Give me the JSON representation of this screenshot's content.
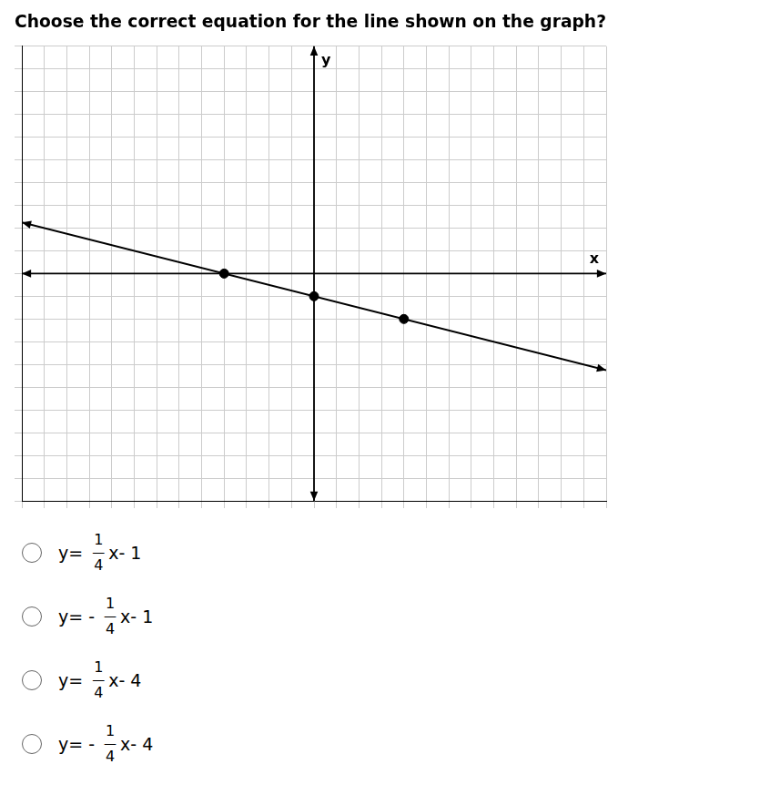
{
  "chart_data": {
    "type": "scatter",
    "title": "Choose the correct equation for the line shown on the graph?",
    "x_label": "x",
    "y_label": "y",
    "xlim": [
      -13,
      13
    ],
    "xticks": [
      -13,
      -12,
      -11,
      -10,
      -9,
      -8,
      -7,
      -6,
      -5,
      -4,
      -3,
      -2,
      -1,
      0,
      1,
      2,
      3,
      4,
      5,
      6,
      7,
      8,
      9,
      10,
      11,
      12,
      13
    ],
    "ylim": [
      -10,
      10
    ],
    "yticks": [
      -10,
      -9,
      -8,
      -7,
      -6,
      -5,
      -4,
      -3,
      -2,
      -1,
      0,
      1,
      2,
      3,
      4,
      5,
      6,
      7,
      8,
      9,
      10
    ],
    "grid": true,
    "tick_labels": false,
    "series": [
      {
        "type": "line",
        "color": "#000000",
        "x": [
          -13,
          13
        ],
        "values": [
          2.25,
          -4.25
        ]
      },
      {
        "type": "scatter",
        "color": "#000000",
        "x": [
          -4,
          0,
          4
        ],
        "values": [
          0,
          -1,
          -2
        ]
      }
    ],
    "annotations": [
      {
        "prefix": "y= ",
        "numerator": "1",
        "bar": "—",
        "denominator": "4",
        "suffix": "x- 1"
      },
      {
        "prefix": "y= - ",
        "numerator": "1",
        "bar": "—",
        "denominator": "4",
        "suffix": "x- 1"
      },
      {
        "prefix": "y= ",
        "numerator": "1",
        "bar": "—",
        "denominator": "4",
        "suffix": "x- 4"
      },
      {
        "prefix": "y= - ",
        "numerator": "1",
        "bar": "—",
        "denominator": "4",
        "suffix": "x- 4"
      }
    ]
  }
}
